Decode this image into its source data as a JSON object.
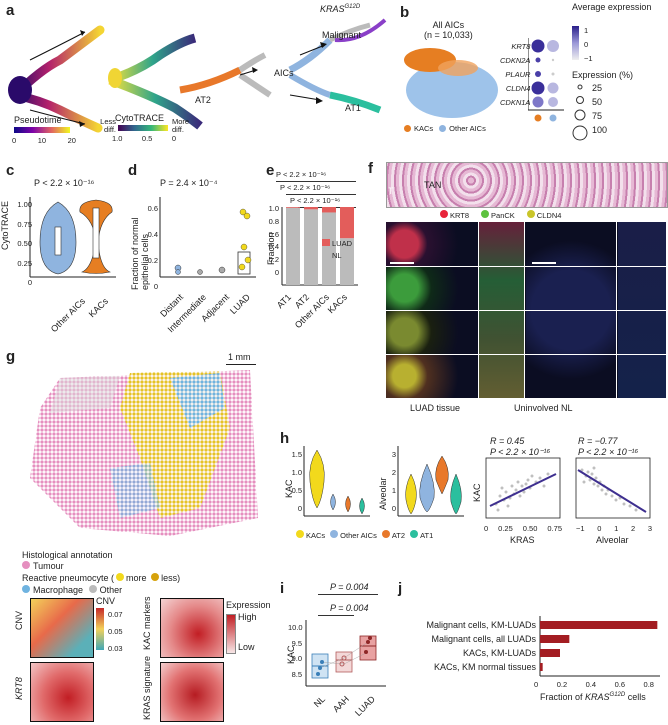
{
  "panels": {
    "a": {
      "letter": "a",
      "pseudotime_label": "Pseudotime",
      "pseudotime_ticks": [
        "0",
        "10",
        "20"
      ],
      "cytotrace_label": "CytoTRACE",
      "cytotrace_ticks": [
        "1.0",
        "0.5",
        "0"
      ],
      "less_diff": "Less diff.",
      "more_diff": "More diff.",
      "at2": "AT2",
      "aics": "AICs",
      "kras": "KRAS",
      "kras_sup": "G12D",
      "malignant": "Malignant",
      "at1": "AT1"
    },
    "b": {
      "letter": "b",
      "title": "All AICs",
      "n": "(n = 10,033)",
      "genes": [
        "KRT8",
        "CDKN2A",
        "PLAUR",
        "CLDN4",
        "CDKN1A"
      ],
      "legend_kacs": "KACs",
      "legend_other": "Other AICs",
      "avg_expr_title": "Average expression",
      "avg_ticks": [
        "1",
        "0",
        "−1"
      ],
      "expr_pct_title": "Expression (%)",
      "pct_ticks": [
        "25",
        "50",
        "75",
        "100"
      ]
    },
    "c": {
      "letter": "c",
      "p": "P < 2.2 × 10⁻¹⁶",
      "ylabel": "CytoTRACE",
      "yticks": [
        "0",
        "0.25",
        "0.50",
        "0.75",
        "1.00"
      ],
      "xticks": [
        "Other AICs",
        "KACs"
      ]
    },
    "d": {
      "letter": "d",
      "p": "P = 2.4 × 10⁻⁴",
      "ylabel": "Fraction of normal epithelial cells",
      "yticks": [
        "0",
        "0.2",
        "0.4",
        "0.6"
      ],
      "xticks": [
        "Distant",
        "Intermediate",
        "Adjacent",
        "LUAD"
      ]
    },
    "e": {
      "letter": "e",
      "p1": "P < 2.2 × 10⁻¹⁶",
      "p2": "P < 2.2 × 10⁻¹⁶",
      "p3": "P < 2.2 × 10⁻¹⁶",
      "ylabel": "Fraction",
      "yticks": [
        "0",
        "0.2",
        "0.4",
        "0.6",
        "0.8",
        "1.0"
      ],
      "xticks": [
        "AT1",
        "AT2",
        "Other AICs",
        "KACs"
      ],
      "legend": [
        "LUAD",
        "NL"
      ]
    },
    "f": {
      "letter": "f",
      "tan": "TAN",
      "t": "T",
      "markers": [
        "KRT8",
        "PanCK",
        "CLDN4"
      ],
      "luad_tissue": "LUAD tissue",
      "uninvolved": "Uninvolved NL"
    },
    "g": {
      "letter": "g",
      "scale": "1 mm",
      "hist_annotation": "Histological annotation",
      "tumour": "Tumour",
      "reactive": "Reactive pneumocyte (",
      "more": "more",
      "less": "less)",
      "macrophage": "Macrophage",
      "other": "Other",
      "cnv_label": "CNV",
      "cnv_ticks": [
        "0.07",
        "0.05",
        "0.03"
      ],
      "krt8": "KRT8",
      "kac_markers": "KAC markers",
      "kras_signature": "KRAS signature",
      "expression": "Expression",
      "high": "High",
      "low": "Low"
    },
    "h": {
      "letter": "h",
      "ylabel1": "KAC",
      "ylabel2": "Alveolar",
      "legend": [
        "KACs",
        "Other AICs",
        "AT2",
        "AT1"
      ],
      "r1": "R = 0.45",
      "p1": "P < 2.2 × 10⁻¹⁶",
      "r2": "R = −0.77",
      "p2": "P < 2.2 × 10⁻¹⁶",
      "scatter1_xlabel": "KRAS",
      "scatter1_ylabel": "KAC",
      "scatter1_xticks": [
        "0",
        "0.25",
        "0.50",
        "0.75"
      ],
      "scatter2_xlabel": "Alveolar",
      "scatter2_xticks": [
        "−1",
        "0",
        "1",
        "2",
        "3"
      ],
      "v1_yticks": [
        "0",
        "0.5",
        "1.0",
        "1.5"
      ],
      "v2_yticks": [
        "0",
        "1",
        "2",
        "3"
      ]
    },
    "i": {
      "letter": "i",
      "p1": "P = 0.004",
      "p2": "P = 0.004",
      "ylabel": "KAC",
      "yticks": [
        "8.5",
        "9.0",
        "9.5",
        "10.0"
      ],
      "xticks": [
        "NL",
        "AAH",
        "LUAD"
      ]
    },
    "j": {
      "letter": "j",
      "xlabel_pre": "Fraction of ",
      "xlabel_gene": "KRAS",
      "xlabel_sup": "G12D",
      "xlabel_post": " cells",
      "xticks": [
        "0",
        "0.2",
        "0.4",
        "0.6",
        "0.8"
      ]
    }
  },
  "colors": {
    "kac": "#e67e22",
    "other_aic": "#8fb4df",
    "at2": "#e8782a",
    "at1": "#2bbf9e",
    "kac_yellow": "#f2d91c",
    "bar_red": "#a31d22",
    "luad": "#e35d5b",
    "nl": "#bbbbbb",
    "tumour_pink": "#e58fbf",
    "macrophage": "#6fb3e0"
  },
  "chart_data": [
    {
      "id": "j",
      "type": "bar",
      "orientation": "horizontal",
      "categories": [
        "Malignant cells, KM-LUADs",
        "Malignant cells, all LUADs",
        "KACs, KM-LUADs",
        "KACs, KM normal tissues"
      ],
      "values": [
        0.88,
        0.22,
        0.15,
        0.02
      ],
      "xlim": [
        0,
        0.9
      ]
    },
    {
      "id": "e",
      "type": "bar",
      "stacked": true,
      "categories": [
        "AT1",
        "AT2",
        "Other AICs",
        "KACs"
      ],
      "series": [
        {
          "name": "NL",
          "values": [
            0.99,
            0.97,
            0.93,
            0.6
          ]
        },
        {
          "name": "LUAD",
          "values": [
            0.01,
            0.03,
            0.07,
            0.4
          ]
        }
      ],
      "ylim": [
        0,
        1
      ]
    }
  ]
}
